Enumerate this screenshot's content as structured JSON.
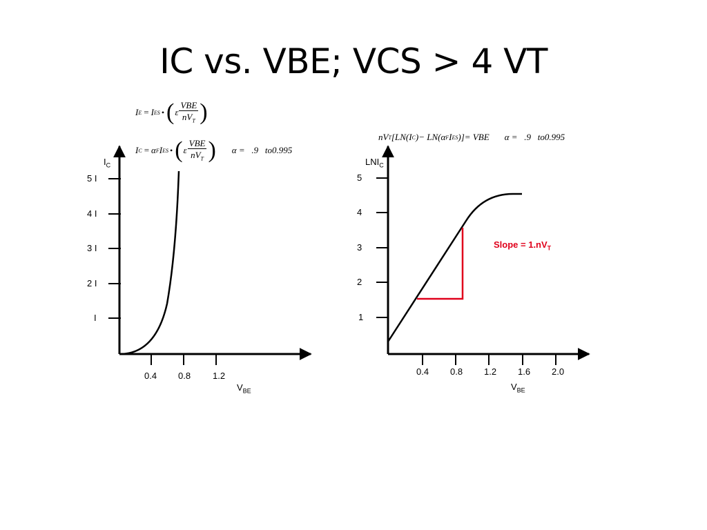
{
  "title": "IC vs. VBE;  VCS > 4 VT",
  "equations": {
    "ie": {
      "lhs": "I",
      "lhs_sub": "E",
      "eq": "=",
      "i": "I",
      "i_sub": "ES",
      "dot": "•",
      "eps": "ε",
      "num": "VBE",
      "den": "nV",
      "den_sub": "T"
    },
    "ic": {
      "lhs": "I",
      "lhs_sub": "C",
      "eq": "=",
      "alpha": "α",
      "alpha_sub": "F",
      "i": "I",
      "i_sub": "ES",
      "dot": "•",
      "eps": "ε",
      "num": "VBE",
      "den": "nV",
      "den_sub": "T",
      "range": "α =   .9   to0.995"
    },
    "ln": {
      "text_a": "nV",
      "sub_t": "T",
      "text_b": "[LN(I",
      "sub_c": "C",
      "text_c": ")− LN(α",
      "sub_f": "F",
      "text_d": "I",
      "sub_es": "ES",
      "text_e": ")]= VBE",
      "range": "α =   .9   to0.995"
    }
  },
  "left_graph": {
    "y_label": "I",
    "y_label_sub": "C",
    "y_ticks": [
      "5 I",
      "4 I",
      "3 I",
      "2 I",
      "I"
    ],
    "x_ticks": [
      "0.4",
      "0.8",
      "1.2"
    ],
    "x_label": "V",
    "x_label_sub": "BE"
  },
  "right_graph": {
    "y_label": "LNI",
    "y_label_sub": "C",
    "y_ticks": [
      "5",
      "4",
      "3",
      "2",
      "1"
    ],
    "x_ticks": [
      "0.4",
      "0.8",
      "1.2",
      "1.6",
      "2.0"
    ],
    "x_label": "V",
    "x_label_sub": "BE",
    "annotation": "Slope = 1.nV",
    "annotation_sub": "T"
  },
  "colors": {
    "axis": "#000000",
    "curve": "#000000",
    "slope_triangle": "#e0001b"
  }
}
